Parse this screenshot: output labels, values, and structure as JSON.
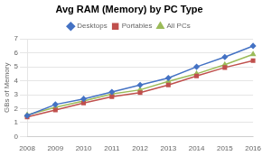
{
  "chart_data": {
    "type": "line",
    "title": "Avg RAM (Memory) by PC Type",
    "ylabel": "GBs of Memory",
    "categories": [
      "2008",
      "2009",
      "2010",
      "2011",
      "2012",
      "2013",
      "2014",
      "2015",
      "2016"
    ],
    "series": [
      {
        "name": "Desktops",
        "color": "#4472C4",
        "marker": "diamond",
        "values": [
          1.5,
          2.3,
          2.7,
          3.2,
          3.7,
          4.2,
          5.0,
          5.7,
          6.5
        ]
      },
      {
        "name": "Portables",
        "color": "#C0504D",
        "marker": "square",
        "values": [
          1.4,
          1.9,
          2.4,
          2.85,
          3.15,
          3.7,
          4.35,
          4.95,
          5.45
        ]
      },
      {
        "name": "All PCs",
        "color": "#9BBB59",
        "marker": "triangle",
        "values": [
          1.55,
          2.1,
          2.55,
          3.05,
          3.35,
          3.95,
          4.5,
          5.15,
          5.9
        ]
      }
    ],
    "ylim": [
      0,
      7
    ],
    "yticks": [
      0,
      1,
      2,
      3,
      4,
      5,
      6,
      7
    ],
    "grid": true,
    "legend": "top"
  }
}
